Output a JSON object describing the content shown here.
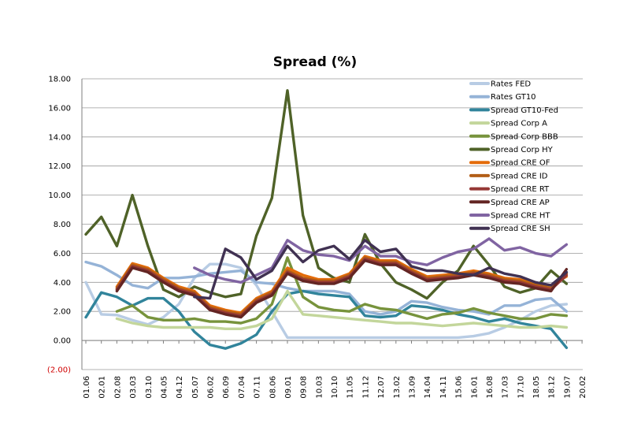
{
  "chart_data": {
    "type": "line",
    "title": "Spread (%)",
    "xlabel": "",
    "ylabel": "",
    "ylim": [
      -2,
      18
    ],
    "y_ticks": [
      {
        "value": 18,
        "label": "18.00"
      },
      {
        "value": 16,
        "label": "16.00"
      },
      {
        "value": 14,
        "label": "14.00"
      },
      {
        "value": 12,
        "label": "12.00"
      },
      {
        "value": 10,
        "label": "10.00"
      },
      {
        "value": 8,
        "label": "8.00"
      },
      {
        "value": 6,
        "label": "6.00"
      },
      {
        "value": 4,
        "label": "4.00"
      },
      {
        "value": 2,
        "label": "2.00"
      },
      {
        "value": 0,
        "label": "0.00"
      },
      {
        "value": -2,
        "label": "(2.00)"
      }
    ],
    "grid": true,
    "legend_position": "top-right",
    "categories": [
      "01.06",
      "02.01",
      "02.08",
      "03.03",
      "03.10",
      "04.05",
      "04.12",
      "05.07",
      "06.02",
      "06.09",
      "07.04",
      "07.11",
      "08.06",
      "09.01",
      "09.08",
      "10.03",
      "10.10",
      "11.05",
      "11.12",
      "12.07",
      "13.02",
      "13.09",
      "14.04",
      "14.11",
      "15.06",
      "16.01",
      "16.08",
      "17.03",
      "17.10",
      "18.05",
      "18.12",
      "19.07",
      "20.02"
    ],
    "series": [
      {
        "name": "Rates FED",
        "color": "#b8cce4",
        "values": [
          4.0,
          1.8,
          1.75,
          1.4,
          1.1,
          1.6,
          2.5,
          4.3,
          5.25,
          5.25,
          5.0,
          3.8,
          2.0,
          0.2,
          0.2,
          0.2,
          0.2,
          0.2,
          0.2,
          0.2,
          0.2,
          0.2,
          0.2,
          0.2,
          0.2,
          0.3,
          0.5,
          0.9,
          1.4,
          2.0,
          2.4,
          2.5,
          null
        ]
      },
      {
        "name": "Rates GT10",
        "color": "#95b3d7",
        "values": [
          5.4,
          5.1,
          4.5,
          3.8,
          3.6,
          4.3,
          4.3,
          4.4,
          4.6,
          4.7,
          4.8,
          4.0,
          3.9,
          3.6,
          3.4,
          3.4,
          3.4,
          3.2,
          2.0,
          1.8,
          2.0,
          2.7,
          2.6,
          2.3,
          2.1,
          2.0,
          1.8,
          2.4,
          2.4,
          2.8,
          2.9,
          2.0,
          null
        ]
      },
      {
        "name": "Spread GT10-Fed",
        "color": "#31849b",
        "values": [
          1.6,
          3.3,
          3.0,
          2.4,
          2.9,
          2.9,
          2.0,
          0.6,
          -0.3,
          -0.55,
          -0.2,
          0.4,
          2.0,
          3.2,
          3.4,
          3.2,
          3.1,
          3.0,
          1.7,
          1.6,
          1.7,
          2.4,
          2.3,
          2.1,
          1.8,
          1.6,
          1.3,
          1.5,
          1.2,
          1.0,
          0.8,
          -0.5,
          null
        ]
      },
      {
        "name": "Spread Corp A",
        "color": "#c3d69b",
        "values": [
          null,
          null,
          1.5,
          1.2,
          1.0,
          0.9,
          0.9,
          0.9,
          0.9,
          0.8,
          0.8,
          1.0,
          1.5,
          3.4,
          1.8,
          1.7,
          1.6,
          1.5,
          1.4,
          1.3,
          1.2,
          1.2,
          1.1,
          1.0,
          1.1,
          1.2,
          1.1,
          1.0,
          0.9,
          0.9,
          1.0,
          0.9,
          null
        ]
      },
      {
        "name": "Spread Corp BBB",
        "color": "#77933c",
        "values": [
          null,
          null,
          2.0,
          2.4,
          1.6,
          1.4,
          1.4,
          1.5,
          1.3,
          1.3,
          1.2,
          1.5,
          2.5,
          5.7,
          3.0,
          2.3,
          2.1,
          2.0,
          2.5,
          2.2,
          2.1,
          1.8,
          1.5,
          1.8,
          1.9,
          2.2,
          1.9,
          1.7,
          1.5,
          1.5,
          1.8,
          1.7,
          null
        ]
      },
      {
        "name": "Spread Corp HY",
        "color": "#4f6228",
        "values": [
          7.3,
          8.5,
          6.5,
          10.0,
          6.5,
          3.5,
          3.0,
          3.7,
          3.3,
          3.0,
          3.2,
          7.2,
          9.8,
          17.2,
          8.6,
          5.0,
          4.3,
          4.0,
          7.3,
          5.3,
          4.0,
          3.5,
          2.9,
          4.0,
          4.8,
          6.5,
          5.2,
          3.7,
          3.3,
          3.6,
          4.8,
          3.9,
          null
        ]
      },
      {
        "name": "Spread CRE OF",
        "color": "#e46c0a",
        "values": [
          null,
          null,
          3.7,
          5.3,
          5.0,
          4.3,
          3.7,
          3.4,
          2.4,
          2.1,
          1.9,
          2.9,
          3.4,
          5.0,
          4.5,
          4.2,
          4.2,
          4.6,
          5.8,
          5.5,
          5.5,
          4.9,
          4.4,
          4.5,
          4.6,
          4.8,
          4.6,
          4.3,
          4.2,
          3.9,
          3.8,
          4.4,
          null
        ]
      },
      {
        "name": "Spread CRE ID",
        "color": "#b25e17",
        "values": [
          null,
          null,
          3.6,
          5.2,
          4.9,
          4.2,
          3.6,
          3.3,
          2.3,
          2.0,
          1.8,
          2.8,
          3.3,
          4.8,
          4.3,
          4.1,
          4.1,
          4.5,
          5.7,
          5.4,
          5.4,
          4.8,
          4.3,
          4.4,
          4.5,
          4.7,
          4.5,
          4.2,
          4.1,
          3.8,
          3.6,
          4.6,
          null
        ]
      },
      {
        "name": "Spread CRE RT",
        "color": "#953735",
        "values": [
          null,
          null,
          3.5,
          5.1,
          4.8,
          4.1,
          3.5,
          3.2,
          2.2,
          1.9,
          1.7,
          2.7,
          3.2,
          4.7,
          4.2,
          4.0,
          4.0,
          4.4,
          5.6,
          5.3,
          5.3,
          4.7,
          4.2,
          4.3,
          4.4,
          4.6,
          4.4,
          4.1,
          4.0,
          3.7,
          3.5,
          4.5,
          null
        ]
      },
      {
        "name": "Spread CRE AP",
        "color": "#632523",
        "values": [
          null,
          null,
          3.4,
          5.0,
          4.7,
          4.0,
          3.4,
          3.1,
          2.1,
          1.8,
          1.6,
          2.6,
          3.1,
          4.6,
          4.1,
          3.9,
          3.9,
          4.3,
          5.5,
          5.2,
          5.2,
          4.6,
          4.1,
          4.2,
          4.3,
          4.5,
          4.3,
          4.0,
          3.9,
          3.6,
          3.4,
          4.9,
          null
        ]
      },
      {
        "name": "Spread CRE HT",
        "color": "#8064a2",
        "values": [
          null,
          null,
          null,
          null,
          null,
          null,
          null,
          5.0,
          4.5,
          4.2,
          4.0,
          4.5,
          5.0,
          6.9,
          6.2,
          5.9,
          5.8,
          5.5,
          6.5,
          5.8,
          5.8,
          5.4,
          5.2,
          5.7,
          6.1,
          6.3,
          7.0,
          6.2,
          6.4,
          6.0,
          5.8,
          6.6,
          null
        ]
      },
      {
        "name": "Spread CRE SH",
        "color": "#403152",
        "values": [
          null,
          null,
          null,
          null,
          null,
          null,
          null,
          3.0,
          2.9,
          6.3,
          5.7,
          4.2,
          4.8,
          6.5,
          5.4,
          6.2,
          6.5,
          5.6,
          6.9,
          6.1,
          6.3,
          5.1,
          4.8,
          4.8,
          4.6,
          4.5,
          5.0,
          4.6,
          4.4,
          4.0,
          3.8,
          4.7,
          null
        ]
      }
    ]
  }
}
